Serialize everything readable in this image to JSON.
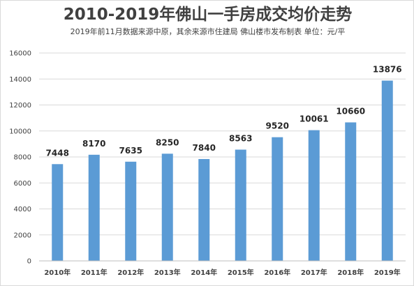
{
  "chart_data": {
    "type": "bar",
    "title": "2010-2019年佛山一手房成交均价走势",
    "subtitle": "2019年前11月数据来源中原，其余来源市住建局 佛山楼市发布制表 单位：元/平",
    "categories": [
      "2010年",
      "2011年",
      "2012年",
      "2013年",
      "2014年",
      "2015年",
      "2016年",
      "2017年",
      "2018年",
      "2019年"
    ],
    "series": [
      {
        "values": [
          7448,
          8170,
          7635,
          8250,
          7840,
          8563,
          9520,
          10061,
          10660,
          13876
        ]
      }
    ],
    "data_labels": [
      "7448",
      "8170",
      "7635",
      "8250",
      "7840",
      "8563",
      "9520",
      "10061",
      "10660",
      "13876"
    ],
    "ylim": [
      0,
      16000
    ],
    "yticks": [
      0,
      2000,
      4000,
      6000,
      8000,
      10000,
      12000,
      14000,
      16000
    ],
    "grid": true,
    "legend": "none",
    "bar_color": "#5b9bd5",
    "grid_color": "#d9d9d9",
    "text_color": "#404040"
  }
}
